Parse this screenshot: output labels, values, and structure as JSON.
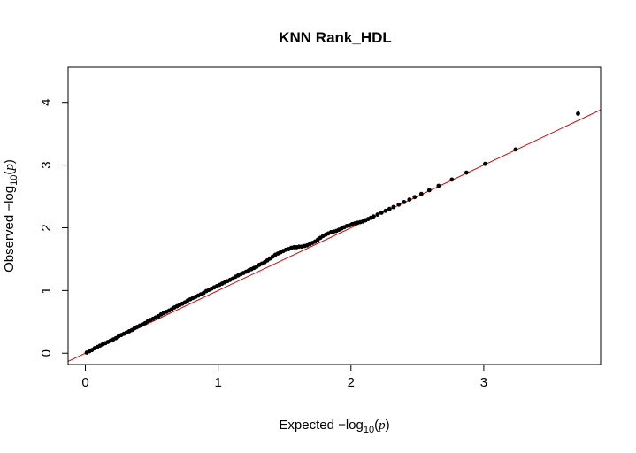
{
  "chart_data": {
    "type": "scatter",
    "title": "KNN Rank_HDL",
    "xlabel": {
      "prefix": "Expected  −log",
      "sub": "10",
      "open": "(",
      "var": "p",
      "close": ")"
    },
    "ylabel": {
      "prefix": "Observed  −log",
      "sub": "10",
      "open": "(",
      "var": "p",
      "close": ")"
    },
    "xlim": [
      -0.13,
      3.88
    ],
    "ylim": [
      -0.18,
      4.56
    ],
    "xticks": [
      0,
      1,
      2,
      3
    ],
    "yticks": [
      0,
      1,
      2,
      3,
      4
    ],
    "grid": false,
    "legend": "none",
    "colors": {
      "points": "#000000",
      "reference_line": "#d00000",
      "frame": "#000000"
    },
    "reference_line": {
      "slope": 1,
      "intercept": 0
    },
    "points_x": [
      0.01,
      0.03,
      0.05,
      0.07,
      0.09,
      0.11,
      0.13,
      0.15,
      0.17,
      0.19,
      0.21,
      0.23,
      0.25,
      0.27,
      0.29,
      0.31,
      0.33,
      0.35,
      0.37,
      0.39,
      0.41,
      0.43,
      0.45,
      0.47,
      0.49,
      0.51,
      0.53,
      0.55,
      0.57,
      0.59,
      0.61,
      0.63,
      0.65,
      0.67,
      0.69,
      0.71,
      0.73,
      0.75,
      0.77,
      0.79,
      0.81,
      0.83,
      0.85,
      0.87,
      0.89,
      0.91,
      0.93,
      0.95,
      0.97,
      0.99,
      1.01,
      1.03,
      1.05,
      1.07,
      1.09,
      1.11,
      1.13,
      1.15,
      1.17,
      1.19,
      1.21,
      1.23,
      1.25,
      1.27,
      1.29,
      1.31,
      1.33,
      1.35,
      1.37,
      1.39,
      1.41,
      1.43,
      1.45,
      1.47,
      1.49,
      1.51,
      1.53,
      1.55,
      1.57,
      1.59,
      1.61,
      1.63,
      1.65,
      1.67,
      1.69,
      1.71,
      1.73,
      1.75,
      1.77,
      1.79,
      1.81,
      1.83,
      1.85,
      1.87,
      1.89,
      1.91,
      1.93,
      1.95,
      1.97,
      1.99,
      2.01,
      2.03,
      2.05,
      2.07,
      2.09,
      2.11,
      2.13,
      2.15,
      2.17,
      2.2,
      2.23,
      2.26,
      2.29,
      2.32,
      2.36,
      2.4,
      2.44,
      2.48,
      2.53,
      2.59,
      2.66,
      2.76,
      2.87,
      3.01,
      3.24,
      3.71
    ],
    "points_y": [
      0.01,
      0.03,
      0.05,
      0.08,
      0.1,
      0.12,
      0.14,
      0.16,
      0.18,
      0.2,
      0.22,
      0.24,
      0.27,
      0.29,
      0.31,
      0.33,
      0.35,
      0.37,
      0.4,
      0.42,
      0.44,
      0.46,
      0.48,
      0.51,
      0.53,
      0.55,
      0.57,
      0.59,
      0.62,
      0.64,
      0.66,
      0.68,
      0.7,
      0.73,
      0.75,
      0.77,
      0.79,
      0.81,
      0.84,
      0.86,
      0.88,
      0.9,
      0.92,
      0.94,
      0.96,
      0.99,
      1.01,
      1.03,
      1.05,
      1.07,
      1.09,
      1.11,
      1.13,
      1.15,
      1.17,
      1.19,
      1.22,
      1.24,
      1.26,
      1.28,
      1.3,
      1.32,
      1.34,
      1.36,
      1.38,
      1.41,
      1.43,
      1.45,
      1.48,
      1.51,
      1.54,
      1.57,
      1.59,
      1.61,
      1.63,
      1.65,
      1.66,
      1.68,
      1.69,
      1.69,
      1.7,
      1.7,
      1.71,
      1.72,
      1.74,
      1.76,
      1.78,
      1.81,
      1.84,
      1.87,
      1.89,
      1.91,
      1.93,
      1.94,
      1.95,
      1.97,
      1.99,
      2.01,
      2.03,
      2.04,
      2.06,
      2.07,
      2.08,
      2.09,
      2.1,
      2.12,
      2.14,
      2.16,
      2.18,
      2.21,
      2.24,
      2.27,
      2.3,
      2.33,
      2.37,
      2.41,
      2.45,
      2.49,
      2.54,
      2.6,
      2.67,
      2.77,
      2.88,
      3.02,
      3.25,
      3.82
    ]
  }
}
